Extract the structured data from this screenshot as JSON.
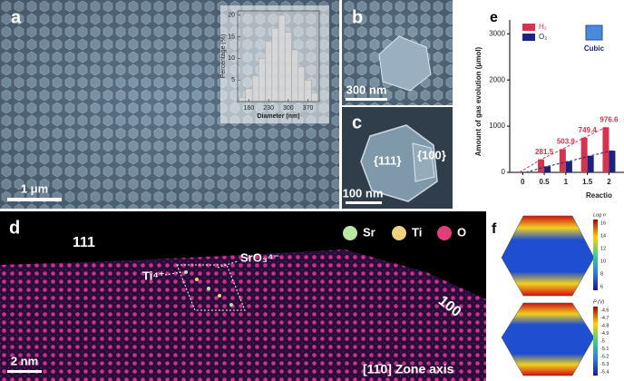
{
  "panels": {
    "a": {
      "label": "a",
      "scale_bar": "1 μm"
    },
    "b": {
      "label": "b",
      "scale_bar": "300 nm"
    },
    "c": {
      "label": "c",
      "scale_bar": "100 nm",
      "facets": [
        "{111}",
        "{100}"
      ]
    },
    "d": {
      "label": "d",
      "scale_bar": "2 nm",
      "facets": [
        "111",
        "100"
      ],
      "legend": [
        "Sr",
        "Ti",
        "O"
      ],
      "annotations": [
        "Ti⁴⁺",
        "SrO₃⁴⁻"
      ],
      "zone_axis": "[11̄0] Zone axis"
    },
    "e": {
      "label": "e",
      "icon_label": "Cubic"
    },
    "f": {
      "label": "f",
      "colorbars": [
        {
          "title": "Log n",
          "ticks": [
            "16",
            "14",
            "12",
            "10",
            "8",
            "6"
          ]
        },
        {
          "title": "P (V)",
          "ticks": [
            "-4.6",
            "-4.7",
            "-4.8",
            "-4.9",
            "-5",
            "-5.1",
            "-5.2",
            "-5.3",
            "-5.4"
          ]
        }
      ]
    }
  },
  "chart_data": [
    {
      "type": "histogram",
      "xlabel": "Diameter (nm)",
      "ylabel": "Percentage (%)",
      "bins": [
        125,
        148,
        172,
        195,
        218,
        242,
        265,
        288,
        312,
        335,
        358,
        382,
        405
      ],
      "counts": [
        1,
        3,
        6,
        10,
        14,
        17,
        20,
        16,
        12,
        8,
        5,
        2
      ],
      "color": "#d9d9d9",
      "xlim": [
        120,
        410
      ],
      "xticks": [
        160,
        230,
        300,
        370
      ],
      "ylim": [
        0,
        21
      ],
      "yticks": [
        5,
        10,
        15,
        20
      ]
    },
    {
      "type": "bar",
      "ylabel": "Amount of gas evolution (μmol)",
      "xlabel": "Reactio",
      "x": [
        0,
        0.5,
        1,
        1.5,
        2
      ],
      "series": [
        {
          "name": "H₂",
          "color": "#d6334f",
          "values": [
            0,
            281.5,
            503.9,
            749.4,
            976.6
          ]
        },
        {
          "name": "O₂",
          "color": "#1a237e",
          "values": [
            0,
            130,
            240,
            360,
            470
          ]
        }
      ],
      "xlim": [
        -0.3,
        2.6
      ],
      "xticks": [
        0,
        0.5,
        1,
        1.5,
        2
      ],
      "ylim": [
        0,
        3300
      ],
      "yticks": [
        0,
        1000,
        2000,
        3000
      ]
    }
  ]
}
